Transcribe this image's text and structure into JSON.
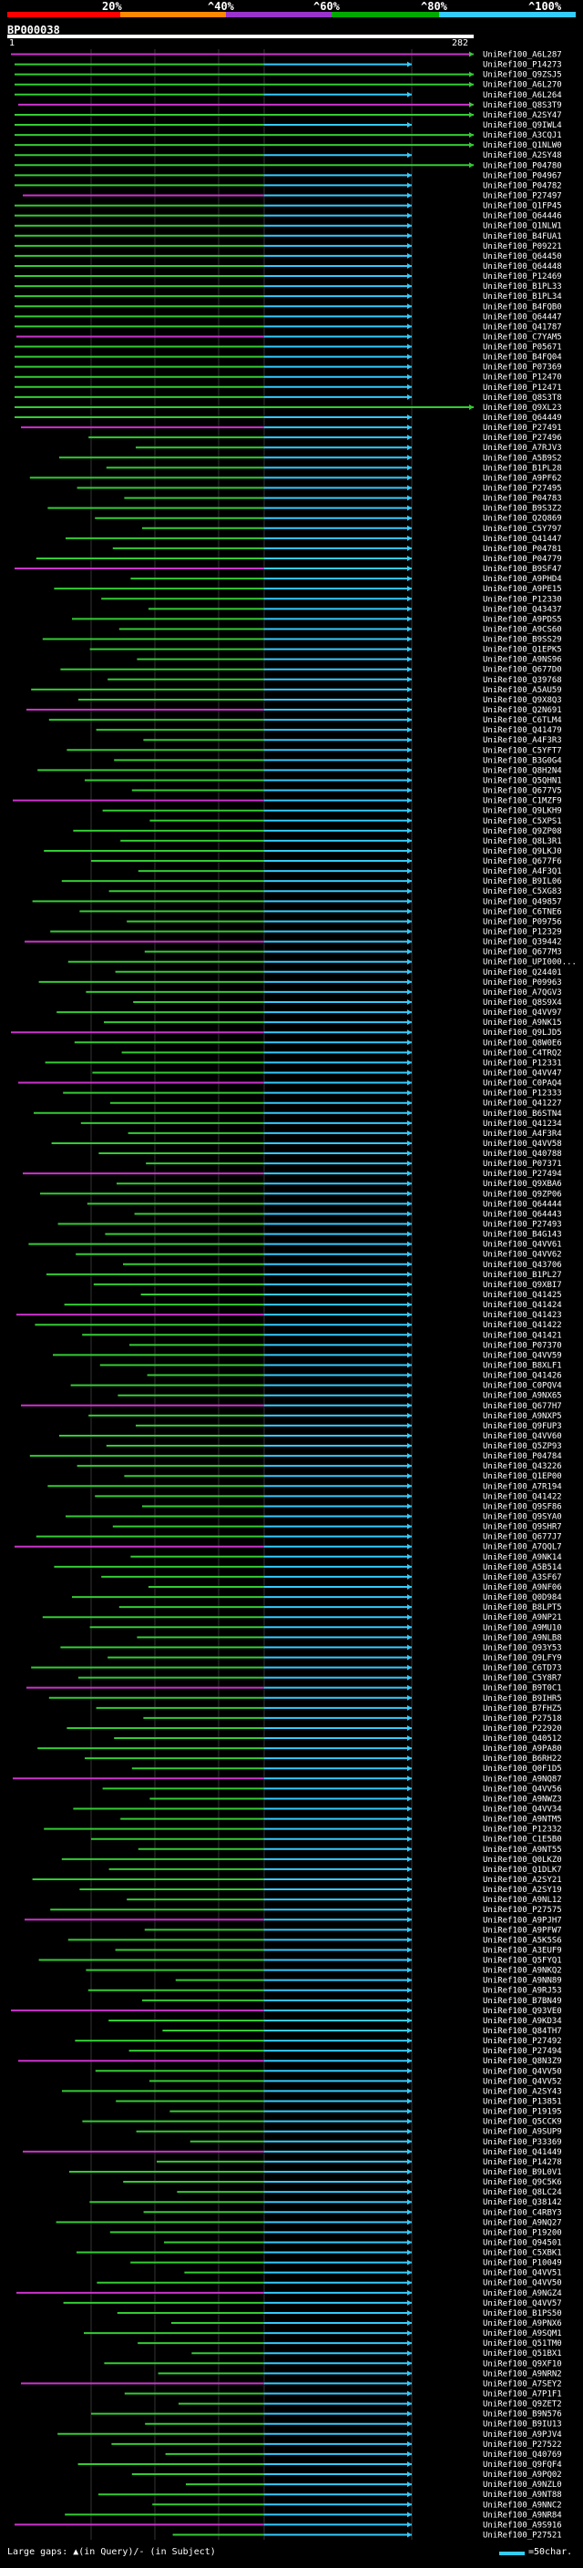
{
  "scale": {
    "ticks": [
      "20%",
      "^40%",
      "^60%",
      "^80%",
      "^100%"
    ],
    "colors": [
      "#ff0000",
      "#ff8800",
      "#9933cc",
      "#00aa00",
      "#33ccff"
    ]
  },
  "query": {
    "id": "BP000038",
    "start": "1",
    "end": "282"
  },
  "footer": {
    "large_gaps": "Large gaps: ▲(in Query)/- (in Subject)",
    "scale_note": "=50char."
  },
  "hits": [
    "UniRef100_A6L287",
    "UniRef100_P14273",
    "UniRef100_Q9ZSJ5",
    "UniRef100_A6L270",
    "UniRef100_A6L264",
    "UniRef100_Q8S3T9",
    "UniRef100_A2SY47",
    "UniRef100_Q9IWL4",
    "UniRef100_A3CQJ1",
    "UniRef100_Q1NLW0",
    "UniRef100_A2SY48",
    "UniRef100_P04780",
    "UniRef100_P04967",
    "UniRef100_P04782",
    "UniRef100_P27497",
    "UniRef100_Q1FP45",
    "UniRef100_Q64446",
    "UniRef100_Q1NLW1",
    "UniRef100_B4FUA1",
    "UniRef100_P09221",
    "UniRef100_Q64450",
    "UniRef100_Q64448",
    "UniRef100_P12469",
    "UniRef100_B1PL33",
    "UniRef100_B1PL34",
    "UniRef100_B4FQB0",
    "UniRef100_Q64447",
    "UniRef100_Q41787",
    "UniRef100_C7YAM5",
    "UniRef100_P05671",
    "UniRef100_B4FQ04",
    "UniRef100_P07369",
    "UniRef100_P12470",
    "UniRef100_P12471",
    "UniRef100_Q8S3T8",
    "UniRef100_Q9XL23",
    "UniRef100_Q64449",
    "UniRef100_P27491",
    "UniRef100_P27496",
    "UniRef100_A7RJV3",
    "UniRef100_A5B9S2",
    "UniRef100_B1PL28",
    "UniRef100_A9PF62",
    "UniRef100_P27495",
    "UniRef100_P04783",
    "UniRef100_B9S3Z2",
    "UniRef100_Q2Q869",
    "UniRef100_C5Y797",
    "UniRef100_Q41447",
    "UniRef100_P04781",
    "UniRef100_P04779",
    "UniRef100_B9SF47",
    "UniRef100_A9PHD4",
    "UniRef100_A9PE15",
    "UniRef100_P12330",
    "UniRef100_Q43437",
    "UniRef100_A9PDS5",
    "UniRef100_A9CS60",
    "UniRef100_B9SS29",
    "UniRef100_Q1EPK5",
    "UniRef100_A9NS96",
    "UniRef100_Q677D0",
    "UniRef100_Q39768",
    "UniRef100_A5AU59",
    "UniRef100_Q9X8Q3",
    "UniRef100_Q2N691",
    "UniRef100_C6TLM4",
    "UniRef100_Q41479",
    "UniRef100_A4F3R3",
    "UniRef100_C5YFT7",
    "UniRef100_B3G0G4",
    "UniRef100_Q8H2N4",
    "UniRef100_Q5QHN1",
    "UniRef100_Q677V5",
    "UniRef100_C1MZF9",
    "UniRef100_Q9LKH9",
    "UniRef100_C5XPS1",
    "UniRef100_Q9ZP08",
    "UniRef100_Q8L3R1",
    "UniRef100_Q9LKJ0",
    "UniRef100_Q677F6",
    "UniRef100_A4F3Q1",
    "UniRef100_B9IL06",
    "UniRef100_C5XG83",
    "UniRef100_Q49857",
    "UniRef100_C6TNE6",
    "UniRef100_P09756",
    "UniRef100_P12329",
    "UniRef100_Q39442",
    "UniRef100_Q677M3",
    "UniRef100_UPI000...",
    "UniRef100_Q24401",
    "UniRef100_P09963",
    "UniRef100_A7QGV3",
    "UniRef100_Q8S9X4",
    "UniRef100_Q4VV97",
    "UniRef100_A9NK15",
    "UniRef100_Q9LJD5",
    "UniRef100_Q8W0E6",
    "UniRef100_C4TRQ2",
    "UniRef100_P12331",
    "UniRef100_Q4VV47",
    "UniRef100_C0PAQ4",
    "UniRef100_P12333",
    "UniRef100_Q41227",
    "UniRef100_B6STN4",
    "UniRef100_Q41234",
    "UniRef100_A4F3R4",
    "UniRef100_Q4VV58",
    "UniRef100_Q40788",
    "UniRef100_P07371",
    "UniRef100_P27494",
    "UniRef100_Q9XBA6",
    "UniRef100_Q9ZP06",
    "UniRef100_Q64444",
    "UniRef100_Q64443",
    "UniRef100_P27493",
    "UniRef100_B4G143",
    "UniRef100_Q4VV61",
    "UniRef100_Q4VV62",
    "UniRef100_Q43706",
    "UniRef100_B1PL27",
    "UniRef100_Q9XBI7",
    "UniRef100_Q41425",
    "UniRef100_Q41424",
    "UniRef100_Q41423",
    "UniRef100_Q41422",
    "UniRef100_Q41421",
    "UniRef100_P07370",
    "UniRef100_Q4VV59",
    "UniRef100_B8XLF1",
    "UniRef100_Q41426",
    "UniRef100_C0PQV4",
    "UniRef100_A9NX65",
    "UniRef100_Q677H7",
    "UniRef100_A9NXP5",
    "UniRef100_Q9FUP3",
    "UniRef100_Q4VV60",
    "UniRef100_Q5ZP93",
    "UniRef100_P04784",
    "UniRef100_Q43226",
    "UniRef100_Q1EP00",
    "UniRef100_A7R194",
    "UniRef100_Q41422",
    "UniRef100_Q9SF86",
    "UniRef100_Q9SYA0",
    "UniRef100_Q9SHR7",
    "UniRef100_Q677J7",
    "UniRef100_A7QQL7",
    "UniRef100_A9NK14",
    "UniRef100_A5B514",
    "UniRef100_A3SF67",
    "UniRef100_A9NF06",
    "UniRef100_Q0D984",
    "UniRef100_B8LPT5",
    "UniRef100_A9NP21",
    "UniRef100_A9MU10",
    "UniRef100_A9NLB8",
    "UniRef100_Q93Y53",
    "UniRef100_Q9LFY9",
    "UniRef100_C6TD73",
    "UniRef100_C5Y8R7",
    "UniRef100_B9T0C1",
    "UniRef100_B9IHR5",
    "UniRef100_B7FHZ5",
    "UniRef100_P27518",
    "UniRef100_P22920",
    "UniRef100_Q40512",
    "UniRef100_A9PA80",
    "UniRef100_B6RH22",
    "UniRef100_Q0F1D5",
    "UniRef100_A9NQ87",
    "UniRef100_Q4VV56",
    "UniRef100_A9NWZ3",
    "UniRef100_Q4VV34",
    "UniRef100_A9NTM5",
    "UniRef100_P12332",
    "UniRef100_C1E5B0",
    "UniRef100_A9NT55",
    "UniRef100_Q0LKZ0",
    "UniRef100_Q1DLK7",
    "UniRef100_A2SY21",
    "UniRef100_A2SY19",
    "UniRef100_A9NL12",
    "UniRef100_P27575",
    "UniRef100_A9PJH7",
    "UniRef100_A9PFW7",
    "UniRef100_A5K5S6",
    "UniRef100_A3EUF9",
    "UniRef100_Q5FYQ1",
    "UniRef100_A9NKQ2",
    "UniRef100_A9NN89",
    "UniRef100_A9RJ53",
    "UniRef100_B7BN49",
    "UniRef100_Q93VE0",
    "UniRef100_A9KD34",
    "UniRef100_Q84TH7",
    "UniRef100_P27492",
    "UniRef100_P27494",
    "UniRef100_Q8N3Z9",
    "UniRef100_Q4VV50",
    "UniRef100_Q4VV52",
    "UniRef100_A2SY43",
    "UniRef100_P13851",
    "UniRef100_P19195",
    "UniRef100_Q5CCK9",
    "UniRef100_A9SUP9",
    "UniRef100_P33369",
    "UniRef100_Q41449",
    "UniRef100_P14278",
    "UniRef100_B9L0V1",
    "UniRef100_Q9C5K6",
    "UniRef100_Q8LC24",
    "UniRef100_Q38142",
    "UniRef100_C4RBY3",
    "UniRef100_A9NQ27",
    "UniRef100_P19200",
    "UniRef100_Q94501",
    "UniRef100_C5XBK1",
    "UniRef100_P10049",
    "UniRef100_Q4VV51",
    "UniRef100_Q4VV50",
    "UniRef100_A9NGZ4",
    "UniRef100_Q4VV57",
    "UniRef100_B1PS50",
    "UniRef100_A9PNX6",
    "UniRef100_A9SQM1",
    "UniRef100_Q51TM0",
    "UniRef100_Q51BX1",
    "UniRef100_Q9XF10",
    "UniRef100_A9NRN2",
    "UniRef100_A7SEY2",
    "UniRef100_A7P1F1",
    "UniRef100_Q9ZET2",
    "UniRef100_B9N576",
    "UniRef100_B9IU13",
    "UniRef100_A9PJV4",
    "UniRef100_P27522",
    "UniRef100_Q40769",
    "UniRef100_Q9FQF4",
    "UniRef100_A9PQ02",
    "UniRef100_A9NZL0",
    "UniRef100_A9NT88",
    "UniRef100_A9NNC2",
    "UniRef100_A9NR84",
    "UniRef100_A9S916",
    "UniRef100_P27521"
  ]
}
